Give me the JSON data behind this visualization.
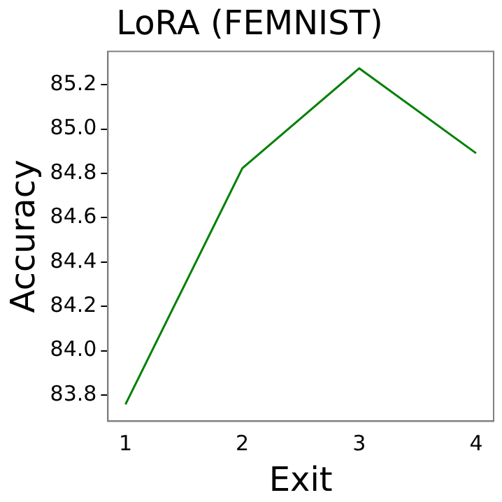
{
  "chart_data": {
    "type": "line",
    "title": "LoRA (FEMNIST)",
    "xlabel": "Exit",
    "ylabel": "Accuracy",
    "x": [
      1,
      2,
      3,
      4
    ],
    "series": [
      {
        "color": "#008000",
        "values": [
          83.758,
          84.823,
          85.274,
          84.891
        ]
      }
    ],
    "xlim": [
      0.85,
      4.15
    ],
    "xticks": [
      1,
      2,
      3,
      4
    ],
    "ylim": [
      83.682,
      85.35
    ],
    "yticks": [
      {
        "value": 83.8,
        "label": "83.8"
      },
      {
        "value": 84.0,
        "label": "84.0"
      },
      {
        "value": 84.2,
        "label": "84.2"
      },
      {
        "value": 84.4,
        "label": "84.4"
      },
      {
        "value": 84.6,
        "label": "84.6"
      },
      {
        "value": 84.8,
        "label": "84.8"
      },
      {
        "value": 85.0,
        "label": "85.0"
      },
      {
        "value": 85.2,
        "label": "85.2"
      }
    ],
    "grid": false,
    "legend": false,
    "marker": "none",
    "line_style": "solid"
  }
}
